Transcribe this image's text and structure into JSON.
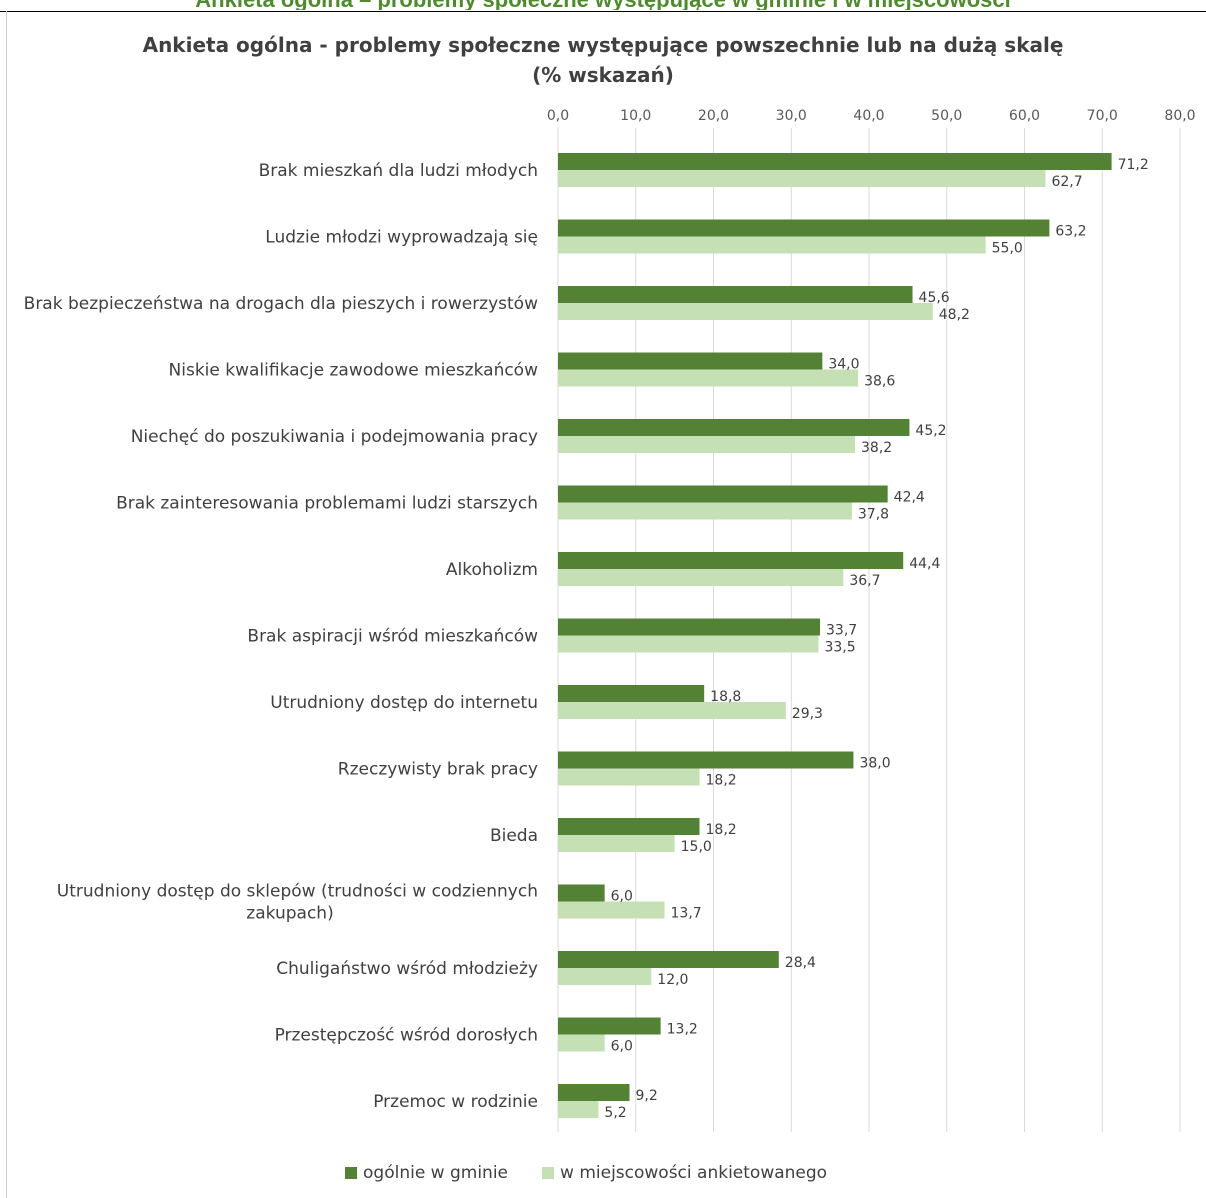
{
  "page": {
    "header_fragment": "Ankieta ogólna – problemy społeczne występujące w gminie i w miejscowości"
  },
  "chart_data": {
    "type": "bar",
    "orientation": "horizontal",
    "title_line1": "Ankieta ogólna - problemy społeczne występujące powszechnie lub na dużą skalę",
    "title_line2": "(% wskazań)",
    "xlim": [
      0,
      80
    ],
    "x_ticks": [
      "0,0",
      "10,0",
      "20,0",
      "30,0",
      "40,0",
      "50,0",
      "60,0",
      "70,0",
      "80,0"
    ],
    "x_axis_position": "top",
    "grid": true,
    "legend_position": "bottom",
    "categories": [
      "Brak mieszkań dla ludzi młodych",
      "Ludzie młodzi wyprowadzają się",
      "Brak bezpieczeństwa na drogach dla pieszych i rowerzystów",
      "Niskie kwalifikacje zawodowe mieszkańców",
      "Niechęć do poszukiwania i podejmowania pracy",
      "Brak zainteresowania problemami ludzi starszych",
      "Alkoholizm",
      "Brak aspiracji wśród mieszkańców",
      "Utrudniony dostęp do internetu",
      "Rzeczywisty brak pracy",
      "Bieda",
      "Utrudniony dostęp do sklepów (trudności w codziennych zakupach)",
      "Chuligaństwo wśród młodzieży",
      "Przestępczość wśród dorosłych",
      "Przemoc w rodzinie"
    ],
    "category_lines": [
      [
        "Brak mieszkań dla ludzi młodych"
      ],
      [
        "Ludzie młodzi wyprowadzają się"
      ],
      [
        "Brak bezpieczeństwa na drogach dla pieszych i rowerzystów"
      ],
      [
        "Niskie kwalifikacje zawodowe mieszkańców"
      ],
      [
        "Niechęć do poszukiwania i podejmowania pracy"
      ],
      [
        "Brak zainteresowania problemami ludzi starszych"
      ],
      [
        "Alkoholizm"
      ],
      [
        "Brak aspiracji wśród mieszkańców"
      ],
      [
        "Utrudniony dostęp do internetu"
      ],
      [
        "Rzeczywisty brak pracy"
      ],
      [
        "Bieda"
      ],
      [
        "Utrudniony dostęp do sklepów (trudności w codziennych",
        "zakupach)"
      ],
      [
        "Chuligaństwo wśród młodzieży"
      ],
      [
        "Przestępczość wśród dorosłych"
      ],
      [
        "Przemoc w rodzinie"
      ]
    ],
    "series": [
      {
        "name": "ogólnie w gminie",
        "color": "#548235",
        "values": [
          71.2,
          63.2,
          45.6,
          34.0,
          45.2,
          42.4,
          44.4,
          33.7,
          18.8,
          38.0,
          18.2,
          6.0,
          28.4,
          13.2,
          9.2
        ],
        "labels": [
          "71,2",
          "63,2",
          "45,6",
          "34,0",
          "45,2",
          "42,4",
          "44,4",
          "33,7",
          "18,8",
          "38,0",
          "18,2",
          "6,0",
          "28,4",
          "13,2",
          "9,2"
        ]
      },
      {
        "name": "w miejscowości ankietowanego",
        "color": "#c5e0b4",
        "values": [
          62.7,
          55.0,
          48.2,
          38.6,
          38.2,
          37.8,
          36.7,
          33.5,
          29.3,
          18.2,
          15.0,
          13.7,
          12.0,
          6.0,
          5.2
        ],
        "labels": [
          "62,7",
          "55,0",
          "48,2",
          "38,6",
          "38,2",
          "37,8",
          "36,7",
          "33,5",
          "29,3",
          "18,2",
          "15,0",
          "13,7",
          "12,0",
          "6,0",
          "5,2"
        ]
      }
    ]
  }
}
